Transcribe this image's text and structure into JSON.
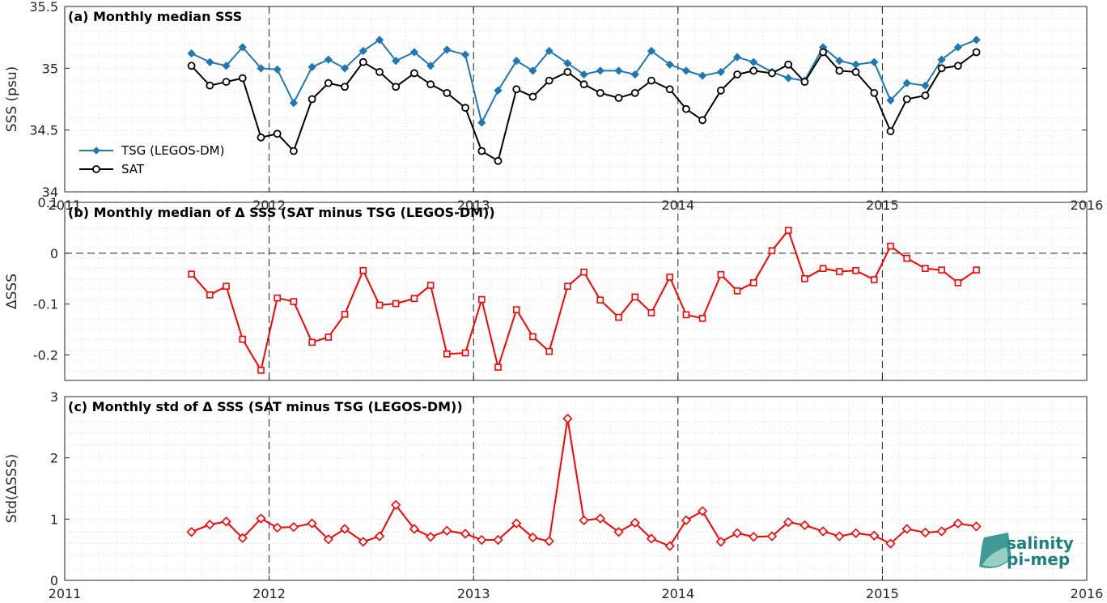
{
  "chart_data": [
    {
      "type": "line",
      "title": "(a) Monthly median SSS",
      "ylabel": "SSS (psu)",
      "xlim": [
        2011,
        2016
      ],
      "ylim": [
        34,
        35.5
      ],
      "yticks": [
        "34",
        "34.5",
        "35",
        "35.5"
      ],
      "xticks": [
        "2011",
        "2012",
        "2013",
        "2014",
        "2015",
        "2016"
      ],
      "grid": true,
      "legend_position": "lower-left",
      "x": [
        2011.62,
        2011.71,
        2011.79,
        2011.87,
        2011.96,
        2012.04,
        2012.12,
        2012.21,
        2012.29,
        2012.37,
        2012.46,
        2012.54,
        2012.62,
        2012.71,
        2012.79,
        2012.87,
        2012.96,
        2013.04,
        2013.12,
        2013.21,
        2013.29,
        2013.37,
        2013.46,
        2013.54,
        2013.62,
        2013.71,
        2013.79,
        2013.87,
        2013.96,
        2014.04,
        2014.12,
        2014.21,
        2014.29,
        2014.37,
        2014.46,
        2014.54,
        2014.62,
        2014.71,
        2014.79,
        2014.87,
        2014.96,
        2015.04,
        2015.12,
        2015.21,
        2015.29,
        2015.37,
        2015.46
      ],
      "series": [
        {
          "name": "TSG (LEGOS-DM)",
          "color": "#1f77b4",
          "marker": "diamond",
          "values": [
            35.12,
            35.05,
            35.02,
            35.17,
            35.0,
            34.99,
            34.72,
            35.01,
            35.07,
            35.0,
            35.14,
            35.23,
            35.06,
            35.13,
            35.02,
            35.15,
            35.11,
            34.56,
            34.82,
            35.06,
            34.98,
            35.14,
            35.04,
            34.95,
            34.98,
            34.98,
            34.95,
            35.14,
            35.03,
            34.98,
            34.94,
            34.97,
            35.09,
            35.05,
            34.97,
            34.92,
            34.9,
            35.17,
            35.06,
            35.03,
            35.05,
            34.74,
            34.88,
            34.86,
            35.07,
            35.17,
            35.23
          ]
        },
        {
          "name": "SAT",
          "color": "#000000",
          "marker": "circle",
          "values": [
            35.02,
            34.86,
            34.89,
            34.92,
            34.44,
            34.47,
            34.33,
            34.75,
            34.88,
            34.85,
            35.05,
            34.97,
            34.85,
            34.96,
            34.87,
            34.8,
            34.68,
            34.33,
            34.25,
            34.83,
            34.77,
            34.9,
            34.97,
            34.87,
            34.8,
            34.76,
            34.8,
            34.9,
            34.83,
            34.67,
            34.58,
            34.82,
            34.95,
            34.98,
            34.96,
            35.03,
            34.89,
            35.13,
            34.98,
            34.97,
            34.8,
            34.49,
            34.75,
            34.78,
            35.0,
            35.02,
            35.13
          ]
        }
      ]
    },
    {
      "type": "line",
      "title": "(b) Monthly median of Δ SSS (SAT minus TSG (LEGOS-DM))",
      "ylabel": "ΔSSS",
      "xlim": [
        2011,
        2016
      ],
      "ylim": [
        -0.25,
        0.1
      ],
      "yticks": [
        "-0.2",
        "-0.1",
        "0",
        "0.1"
      ],
      "grid": true,
      "zero_line": true,
      "x": [
        2011.62,
        2011.71,
        2011.79,
        2011.87,
        2011.96,
        2012.04,
        2012.12,
        2012.21,
        2012.29,
        2012.37,
        2012.46,
        2012.54,
        2012.62,
        2012.71,
        2012.79,
        2012.87,
        2012.96,
        2013.04,
        2013.12,
        2013.21,
        2013.29,
        2013.37,
        2013.46,
        2013.54,
        2013.62,
        2013.71,
        2013.79,
        2013.87,
        2013.96,
        2014.04,
        2014.12,
        2014.21,
        2014.29,
        2014.37,
        2014.46,
        2014.54,
        2014.62,
        2014.71,
        2014.79,
        2014.87,
        2014.96,
        2015.04,
        2015.12,
        2015.21,
        2015.29,
        2015.37,
        2015.46
      ],
      "series": [
        {
          "color": "#ff0000",
          "marker": "square",
          "values": [
            -0.041,
            -0.082,
            -0.065,
            -0.169,
            -0.23,
            -0.088,
            -0.095,
            -0.175,
            -0.165,
            -0.12,
            -0.034,
            -0.102,
            -0.099,
            -0.089,
            -0.063,
            -0.198,
            -0.196,
            -0.091,
            -0.224,
            -0.111,
            -0.164,
            -0.193,
            -0.065,
            -0.037,
            -0.092,
            -0.126,
            -0.086,
            -0.117,
            -0.047,
            -0.121,
            -0.128,
            -0.042,
            -0.074,
            -0.058,
            0.005,
            0.045,
            -0.05,
            -0.03,
            -0.036,
            -0.034,
            -0.052,
            0.014,
            -0.01,
            -0.03,
            -0.033,
            -0.058,
            -0.033
          ]
        }
      ]
    },
    {
      "type": "line",
      "title": "(c) Monthly std of Δ SSS (SAT minus TSG (LEGOS-DM))",
      "ylabel": "Std(ΔSSS)",
      "xlim": [
        2011,
        2016
      ],
      "ylim": [
        0,
        3
      ],
      "yticks": [
        "0",
        "1",
        "2",
        "3"
      ],
      "xticks": [
        "2011",
        "2012",
        "2013",
        "2014",
        "2015",
        "2016"
      ],
      "grid": true,
      "x": [
        2011.62,
        2011.71,
        2011.79,
        2011.87,
        2011.96,
        2012.04,
        2012.12,
        2012.21,
        2012.29,
        2012.37,
        2012.46,
        2012.54,
        2012.62,
        2012.71,
        2012.79,
        2012.87,
        2012.96,
        2013.04,
        2013.12,
        2013.21,
        2013.29,
        2013.37,
        2013.46,
        2013.54,
        2013.62,
        2013.71,
        2013.79,
        2013.87,
        2013.96,
        2014.04,
        2014.12,
        2014.21,
        2014.29,
        2014.37,
        2014.46,
        2014.54,
        2014.62,
        2014.71,
        2014.79,
        2014.87,
        2014.96,
        2015.04,
        2015.12,
        2015.21,
        2015.29,
        2015.37,
        2015.46
      ],
      "series": [
        {
          "color": "#ff0000",
          "marker": "diamond",
          "values": [
            0.79,
            0.91,
            0.96,
            0.69,
            1.01,
            0.86,
            0.87,
            0.93,
            0.67,
            0.84,
            0.63,
            0.72,
            1.23,
            0.84,
            0.71,
            0.81,
            0.76,
            0.66,
            0.66,
            0.93,
            0.7,
            0.64,
            2.64,
            0.98,
            1.01,
            0.79,
            0.94,
            0.68,
            0.56,
            0.98,
            1.13,
            0.63,
            0.77,
            0.71,
            0.72,
            0.95,
            0.9,
            0.8,
            0.72,
            0.77,
            0.73,
            0.6,
            0.84,
            0.78,
            0.8,
            0.93,
            0.88
          ]
        }
      ]
    }
  ],
  "logo": {
    "line1": "salinity",
    "line2": "pi-mep",
    "accent": "#1d7f85"
  }
}
